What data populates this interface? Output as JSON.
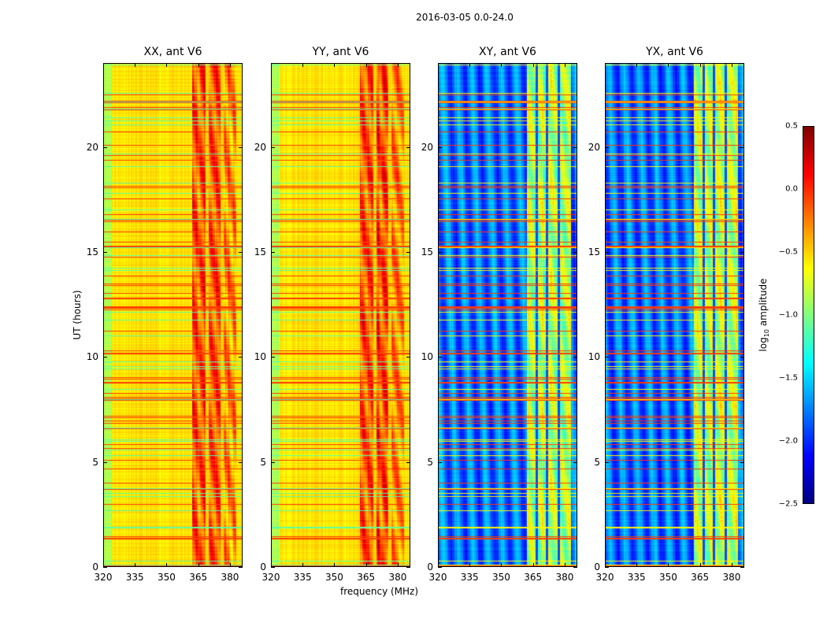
{
  "chart_data": {
    "type": "heatmap",
    "title": "2016-03-05 0.0-24.0",
    "xlabel": "frequency (MHz)",
    "ylabel": "UT (hours)",
    "xlim": [
      320,
      386
    ],
    "ylim": [
      0,
      24
    ],
    "xticks": [
      "320",
      "335",
      "350",
      "365",
      "380"
    ],
    "yticks": [
      "0",
      "5",
      "10",
      "15",
      "20"
    ],
    "panels": [
      {
        "title": "XX, ant V6",
        "base": -0.55,
        "band": -0.1
      },
      {
        "title": "YY, ant V6",
        "base": -0.55,
        "band": -0.1
      },
      {
        "title": "XY, ant V6",
        "base": -1.8,
        "band": -0.85
      },
      {
        "title": "YX, ant V6",
        "base": -1.8,
        "band": -0.85
      }
    ],
    "band_range_mhz": [
      362,
      383
    ],
    "colorbar": {
      "label_prefix": "log",
      "label_sub": "10",
      "label_suffix": " amplitude",
      "range": [
        -2.5,
        0.5
      ],
      "ticks": [
        "0.5",
        "0.0",
        "−0.5",
        "−1.0",
        "−1.5",
        "−2.0",
        "−2.5"
      ],
      "colormap": "jet"
    }
  }
}
